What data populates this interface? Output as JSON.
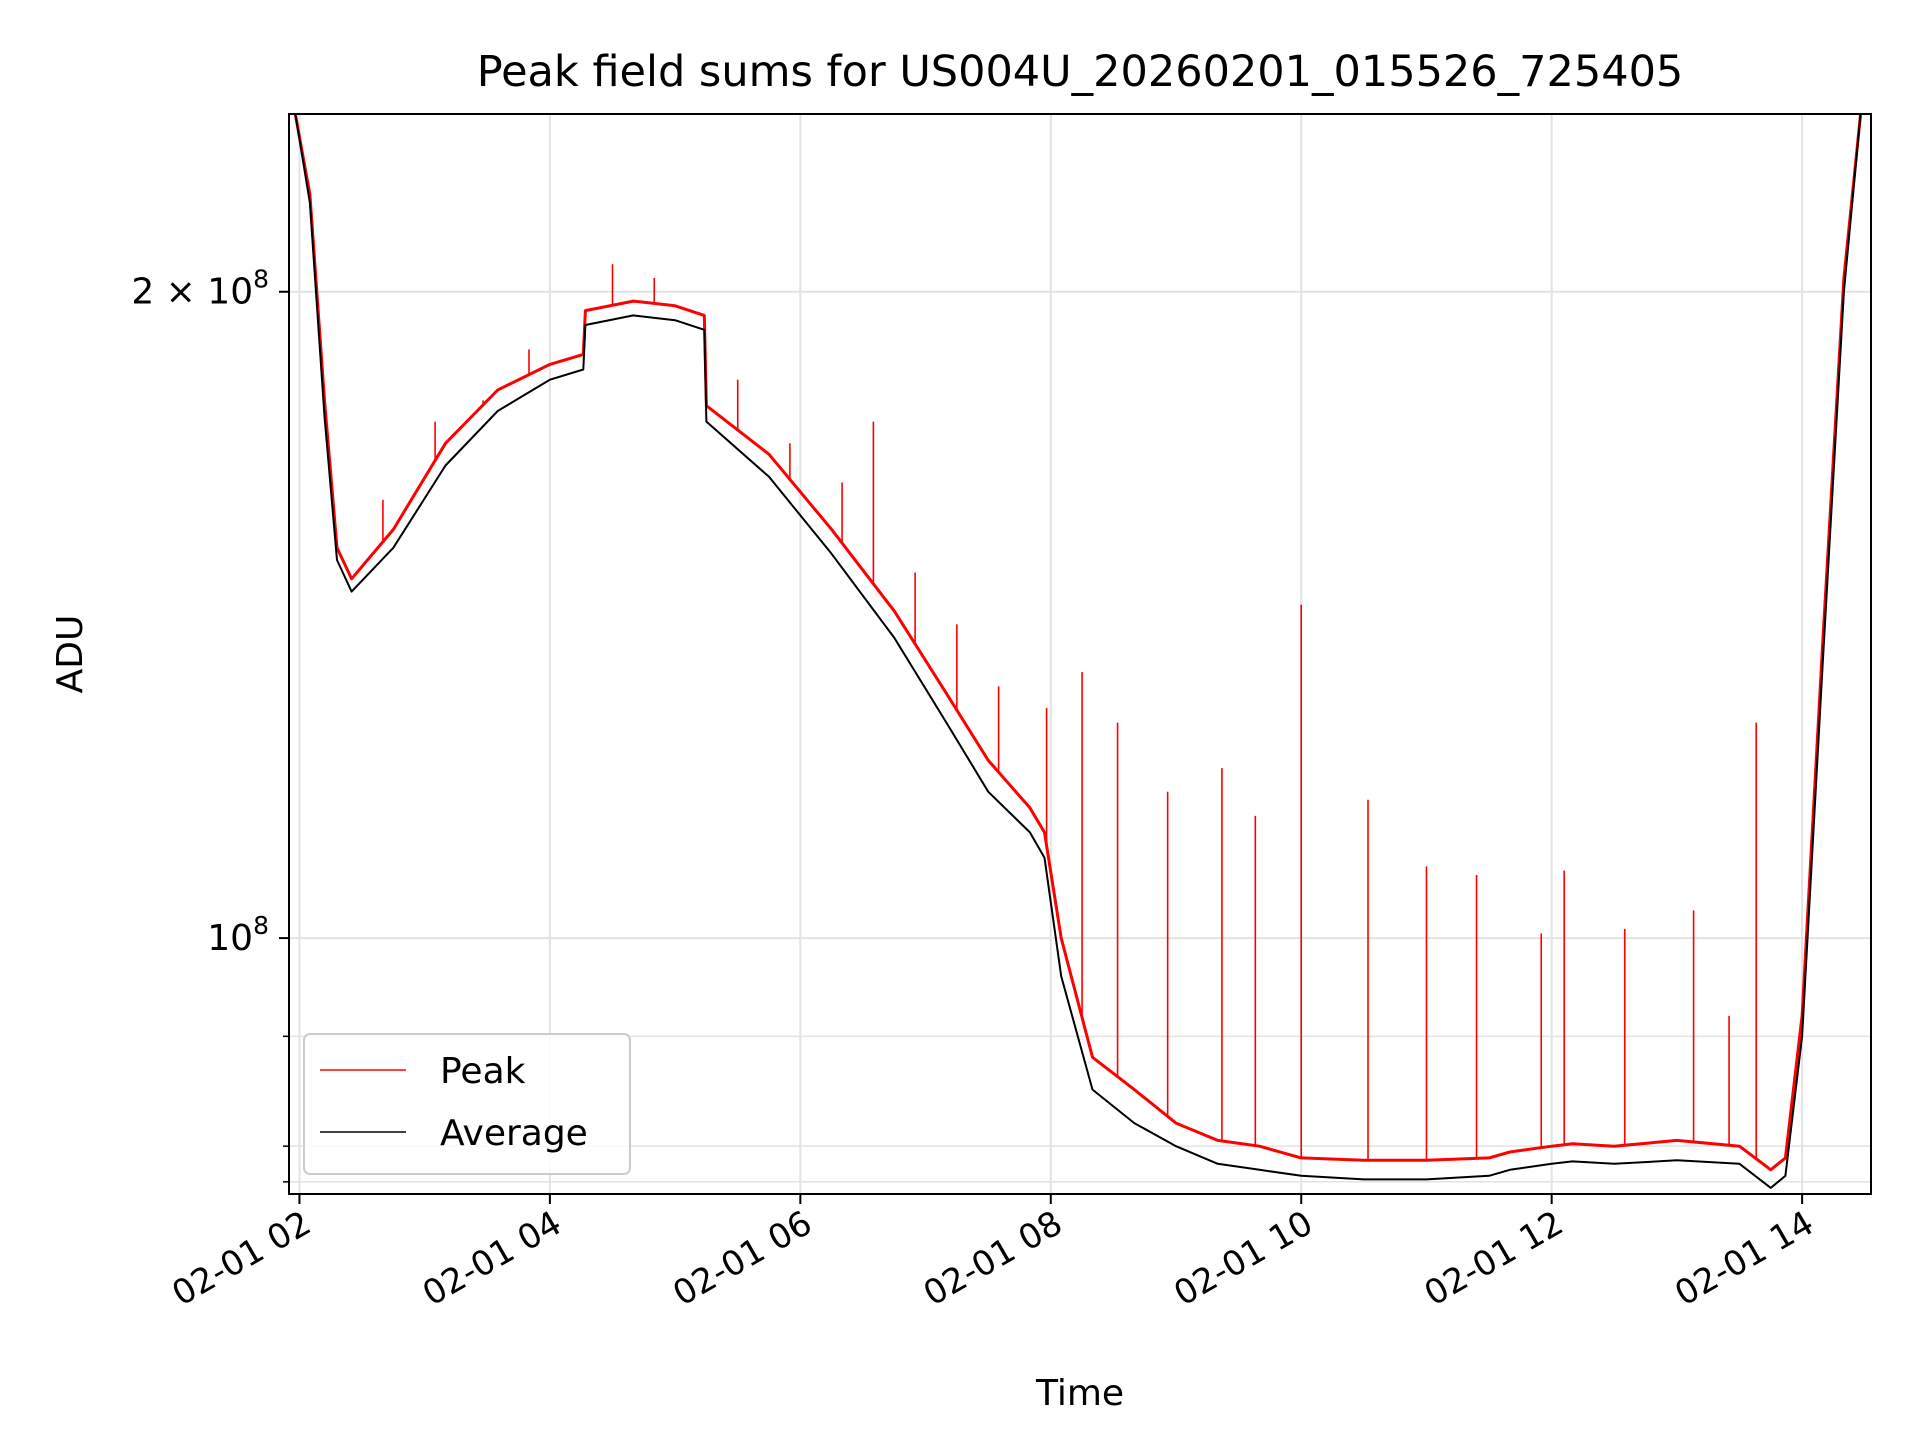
{
  "chart_data": {
    "type": "line",
    "title": "Peak field sums for US004U_20260201_015526_725405",
    "xlabel": "Time",
    "ylabel": "ADU",
    "y_scale": "log",
    "x_range": [
      "2026-02-01 01:55",
      "2026-02-01 14:33"
    ],
    "y_range": [
      76000000,
      242000000
    ],
    "x_ticks": [
      "02-01 02",
      "02-01 04",
      "02-01 06",
      "02-01 08",
      "02-01 10",
      "02-01 12",
      "02-01 14"
    ],
    "y_ticks": [
      {
        "value": 100000000,
        "label_base": "10",
        "label_exp": "8"
      },
      {
        "value": 200000000,
        "label_base": "2 × 10",
        "label_exp": "8"
      }
    ],
    "y_minor_ticks": [
      77000000,
      80000000,
      90000000
    ],
    "grid": true,
    "legend": {
      "placement": "lower-left",
      "entries": [
        {
          "label": "Peak",
          "color": "#ff0000"
        },
        {
          "label": "Average",
          "color": "#000000"
        }
      ]
    },
    "series": [
      {
        "name": "Average",
        "color": "#000000",
        "x": [
          "2026-02-01 01:58",
          "2026-02-01 02:05",
          "2026-02-01 02:12",
          "2026-02-01 02:18",
          "2026-02-01 02:25",
          "2026-02-01 02:45",
          "2026-02-01 03:10",
          "2026-02-01 03:35",
          "2026-02-01 04:00",
          "2026-02-01 04:16",
          "2026-02-01 04:17",
          "2026-02-01 04:40",
          "2026-02-01 05:00",
          "2026-02-01 05:14",
          "2026-02-01 05:15",
          "2026-02-01 05:45",
          "2026-02-01 06:15",
          "2026-02-01 06:45",
          "2026-02-01 07:10",
          "2026-02-01 07:30",
          "2026-02-01 07:50",
          "2026-02-01 07:57",
          "2026-02-01 08:05",
          "2026-02-01 08:20",
          "2026-02-01 08:40",
          "2026-02-01 09:00",
          "2026-02-01 09:20",
          "2026-02-01 09:40",
          "2026-02-01 10:00",
          "2026-02-01 10:30",
          "2026-02-01 11:00",
          "2026-02-01 11:30",
          "2026-02-01 11:40",
          "2026-02-01 12:00",
          "2026-02-01 12:10",
          "2026-02-01 12:30",
          "2026-02-01 13:00",
          "2026-02-01 13:30",
          "2026-02-01 13:45",
          "2026-02-01 13:52",
          "2026-02-01 14:00",
          "2026-02-01 14:10",
          "2026-02-01 14:20",
          "2026-02-01 14:28"
        ],
        "y": [
          242000000,
          220000000,
          175000000,
          150000000,
          145000000,
          152000000,
          166000000,
          176000000,
          182000000,
          184000000,
          193000000,
          195000000,
          194000000,
          192000000,
          174000000,
          164000000,
          151000000,
          138000000,
          126000000,
          117000000,
          112000000,
          109000000,
          96000000,
          85000000,
          82000000,
          80000000,
          78500000,
          78000000,
          77500000,
          77200000,
          77200000,
          77500000,
          78000000,
          78500000,
          78700000,
          78500000,
          78800000,
          78500000,
          76500000,
          77500000,
          90000000,
          135000000,
          200000000,
          242000000
        ]
      },
      {
        "name": "Peak",
        "color": "#ff0000",
        "x": [
          "2026-02-01 01:58",
          "2026-02-01 02:05",
          "2026-02-01 02:12",
          "2026-02-01 02:18",
          "2026-02-01 02:25",
          "2026-02-01 02:45",
          "2026-02-01 03:10",
          "2026-02-01 03:35",
          "2026-02-01 04:00",
          "2026-02-01 04:16",
          "2026-02-01 04:17",
          "2026-02-01 04:40",
          "2026-02-01 05:00",
          "2026-02-01 05:14",
          "2026-02-01 05:15",
          "2026-02-01 05:45",
          "2026-02-01 06:15",
          "2026-02-01 06:45",
          "2026-02-01 07:10",
          "2026-02-01 07:30",
          "2026-02-01 07:50",
          "2026-02-01 07:57",
          "2026-02-01 08:05",
          "2026-02-01 08:20",
          "2026-02-01 08:40",
          "2026-02-01 09:00",
          "2026-02-01 09:20",
          "2026-02-01 09:40",
          "2026-02-01 10:00",
          "2026-02-01 10:30",
          "2026-02-01 11:00",
          "2026-02-01 11:30",
          "2026-02-01 11:40",
          "2026-02-01 12:00",
          "2026-02-01 12:10",
          "2026-02-01 12:30",
          "2026-02-01 13:00",
          "2026-02-01 13:30",
          "2026-02-01 13:45",
          "2026-02-01 13:52",
          "2026-02-01 14:00",
          "2026-02-01 14:10",
          "2026-02-01 14:20",
          "2026-02-01 14:28"
        ],
        "y": [
          242000000,
          222000000,
          178000000,
          152000000,
          147000000,
          155000000,
          170000000,
          180000000,
          185000000,
          187000000,
          196000000,
          198000000,
          197000000,
          195000000,
          177000000,
          168000000,
          155000000,
          142000000,
          130000000,
          121000000,
          115000000,
          112000000,
          100000000,
          88000000,
          85000000,
          82000000,
          80500000,
          80000000,
          79000000,
          78800000,
          78800000,
          79000000,
          79500000,
          80000000,
          80200000,
          80000000,
          80500000,
          80000000,
          78000000,
          79000000,
          92000000,
          138000000,
          203000000,
          242000000
        ]
      }
    ],
    "peak_spikes": {
      "x": [
        "2026-02-01 02:15",
        "2026-02-01 02:40",
        "2026-02-01 03:05",
        "2026-02-01 03:28",
        "2026-02-01 03:50",
        "2026-02-01 04:30",
        "2026-02-01 04:50",
        "2026-02-01 05:30",
        "2026-02-01 05:55",
        "2026-02-01 06:20",
        "2026-02-01 06:35",
        "2026-02-01 06:55",
        "2026-02-01 07:15",
        "2026-02-01 07:35",
        "2026-02-01 07:58",
        "2026-02-01 08:15",
        "2026-02-01 08:32",
        "2026-02-01 08:56",
        "2026-02-01 09:22",
        "2026-02-01 09:38",
        "2026-02-01 10:00",
        "2026-02-01 10:32",
        "2026-02-01 11:00",
        "2026-02-01 11:24",
        "2026-02-01 11:55",
        "2026-02-01 12:06",
        "2026-02-01 12:35",
        "2026-02-01 13:08",
        "2026-02-01 13:25",
        "2026-02-01 13:38"
      ],
      "y": [
        166000000,
        160000000,
        174000000,
        178000000,
        188000000,
        206000000,
        203000000,
        182000000,
        170000000,
        163000000,
        174000000,
        148000000,
        140000000,
        131000000,
        128000000,
        133000000,
        126000000,
        117000000,
        120000000,
        114000000,
        143000000,
        116000000,
        108000000,
        107000000,
        100500000,
        107500000,
        101000000,
        103000000,
        92000000,
        126000000
      ]
    }
  }
}
